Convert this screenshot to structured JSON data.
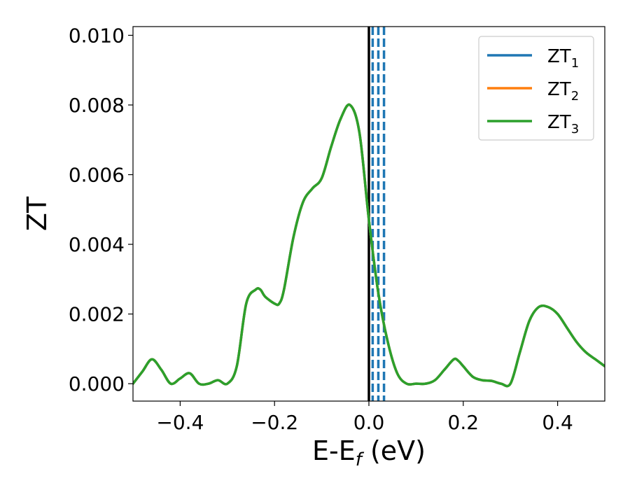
{
  "chart_data": {
    "type": "line",
    "title": "",
    "xlabel": "E-E",
    "xlabel_sub": "f",
    "xlabel_unit": " (eV)",
    "ylabel": "ZT",
    "xlim": [
      -0.5,
      0.5
    ],
    "ylim": [
      -0.0005,
      0.01025
    ],
    "x_ticks": [
      -0.4,
      -0.2,
      0.0,
      0.2,
      0.4
    ],
    "x_tick_labels": [
      "−0.4",
      "−0.2",
      "0.0",
      "0.2",
      "0.4"
    ],
    "y_ticks": [
      0.0,
      0.002,
      0.004,
      0.006,
      0.008,
      0.01
    ],
    "y_tick_labels": [
      "0.000",
      "0.002",
      "0.004",
      "0.006",
      "0.008",
      "0.010"
    ],
    "grid": false,
    "legend_position": "top-right",
    "vertical_lines": [
      {
        "x": 0.0,
        "color": "#000000",
        "style": "solid"
      },
      {
        "x": 0.008,
        "color": "#1f77b4",
        "style": "dashed"
      },
      {
        "x": 0.02,
        "color": "#1f77b4",
        "style": "dashed"
      },
      {
        "x": 0.032,
        "color": "#1f77b4",
        "style": "dashed"
      }
    ],
    "series": [
      {
        "name": "ZT",
        "sub": "1",
        "color": "#1f77b4",
        "visible_curve": false
      },
      {
        "name": "ZT",
        "sub": "2",
        "color": "#ff7f0e",
        "visible_curve": false
      },
      {
        "name": "ZT",
        "sub": "3",
        "color": "#2ca02c",
        "visible_curve": true
      }
    ],
    "x": [
      -0.5,
      -0.48,
      -0.46,
      -0.44,
      -0.42,
      -0.4,
      -0.38,
      -0.36,
      -0.34,
      -0.32,
      -0.3,
      -0.28,
      -0.26,
      -0.24,
      -0.23,
      -0.22,
      -0.2,
      -0.19,
      -0.18,
      -0.16,
      -0.14,
      -0.12,
      -0.1,
      -0.08,
      -0.06,
      -0.04,
      -0.02,
      0.0,
      0.02,
      0.04,
      0.06,
      0.08,
      0.1,
      0.12,
      0.14,
      0.16,
      0.18,
      0.19,
      0.2,
      0.22,
      0.24,
      0.26,
      0.28,
      0.3,
      0.32,
      0.34,
      0.36,
      0.38,
      0.4,
      0.42,
      0.44,
      0.46,
      0.48,
      0.5
    ],
    "values": [
      0.0,
      0.00035,
      0.0007,
      0.0004,
      0.0,
      0.00015,
      0.0003,
      0.0,
      0.0,
      0.0001,
      0.0,
      0.0005,
      0.0023,
      0.0027,
      0.0027,
      0.0025,
      0.0023,
      0.0023,
      0.0027,
      0.0042,
      0.0052,
      0.0056,
      0.0059,
      0.0068,
      0.0076,
      0.008,
      0.0072,
      0.0047,
      0.0026,
      0.0012,
      0.0003,
      0.0,
      0.0,
      0.0,
      0.0001,
      0.0004,
      0.0007,
      0.00065,
      0.0005,
      0.0002,
      0.0001,
      8e-05,
      0.0,
      0.0,
      0.0009,
      0.0018,
      0.0022,
      0.0022,
      0.002,
      0.0016,
      0.0012,
      0.0009,
      0.0007,
      0.0005
    ]
  }
}
